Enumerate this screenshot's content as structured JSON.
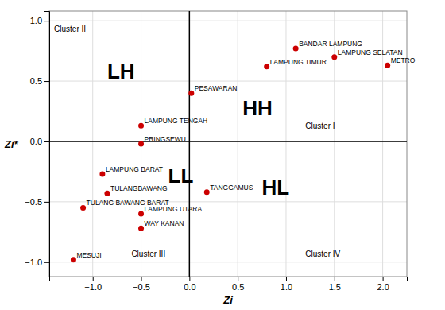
{
  "chart_data": {
    "type": "scatter",
    "x_label": "Zi",
    "y_label": "Zi*",
    "labels": [
      "BANDAR LAMPUNG",
      "LAMPUNG TIMUR",
      "METRO",
      "LAMPUNG SELATAN",
      "PESAWARAN",
      "LAMPUNG TENGAH",
      "PRINGSEWU",
      "LAMPUNG BARAT",
      "TULANGBAWANG",
      "TULANG BAWANG BARAT",
      "LAMPUNG UTARA",
      "WAY KANAN",
      "MESUJI",
      "TANGGAMUS"
    ],
    "x": [
      1.1,
      0.8,
      2.05,
      1.5,
      0.02,
      -0.5,
      -0.5,
      -0.9,
      -0.85,
      -1.1,
      -0.5,
      -0.5,
      -1.2,
      0.18
    ],
    "values": [
      0.77,
      0.62,
      0.63,
      0.7,
      0.4,
      0.13,
      -0.02,
      -0.27,
      -0.43,
      -0.55,
      -0.6,
      -0.72,
      -0.98,
      -0.42
    ],
    "color": "#cc0000",
    "xlim": [
      -1.45,
      2.25
    ],
    "ylim": [
      -1.12,
      1.08
    ],
    "xticks": [
      {
        "value": -1.0,
        "label": "−1.0"
      },
      {
        "value": -0.5,
        "label": "−0.5"
      },
      {
        "value": 0.0,
        "label": "0.0"
      },
      0.5,
      {
        "value": 1.0,
        "label": "1.0"
      },
      1.5,
      {
        "value": 2.0,
        "label": "2.0"
      }
    ],
    "yticks": [
      {
        "value": -1.0,
        "label": "−1.0"
      },
      {
        "value": -0.5,
        "label": "−0.5"
      },
      {
        "value": 0.0,
        "label": "0.0"
      },
      0.5,
      {
        "value": 1.0,
        "label": "1.0"
      }
    ],
    "grid": true,
    "reference_lines": [
      {
        "axis": "y",
        "value": 0
      },
      {
        "axis": "x",
        "value": 0
      }
    ],
    "quadrant_labels": [
      {
        "text": "LH",
        "x": -0.85,
        "y": 0.58
      },
      {
        "text": "HH",
        "x": 0.55,
        "y": 0.28
      },
      {
        "text": "LL",
        "x": -0.22,
        "y": -0.28
      },
      {
        "text": "HL",
        "x": 0.75,
        "y": -0.38
      }
    ],
    "cluster_labels": [
      {
        "text": "Cluster II",
        "x": -1.4,
        "y": 0.93
      },
      {
        "text": "Cluster I",
        "x": 1.2,
        "y": 0.13
      },
      {
        "text": "Cluster III",
        "x": -0.6,
        "y": -0.93
      },
      {
        "text": "Cluster IV",
        "x": 1.2,
        "y": -0.93
      }
    ]
  }
}
